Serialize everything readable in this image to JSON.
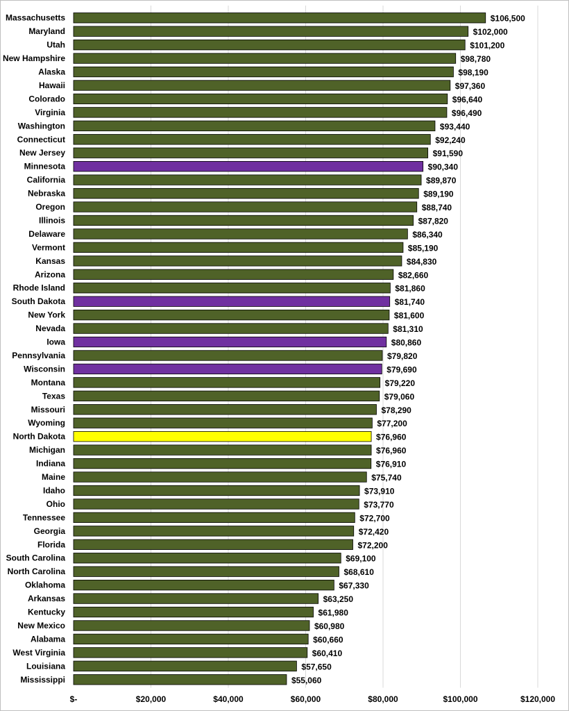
{
  "chart_data": {
    "type": "bar",
    "orientation": "horizontal",
    "categories": [
      "Massachusetts",
      "Maryland",
      "Utah",
      "New Hampshire",
      "Alaska",
      "Hawaii",
      "Colorado",
      "Virginia",
      "Washington",
      "Connecticut",
      "New Jersey",
      "Minnesota",
      "California",
      "Nebraska",
      "Oregon",
      "Illinois",
      "Delaware",
      "Vermont",
      "Kansas",
      "Arizona",
      "Rhode Island",
      "South Dakota",
      "New York",
      "Nevada",
      "Iowa",
      "Pennsylvania",
      "Wisconsin",
      "Montana",
      "Texas",
      "Missouri",
      "Wyoming",
      "North Dakota",
      "Michigan",
      "Indiana",
      "Maine",
      "Idaho",
      "Ohio",
      "Tennessee",
      "Georgia",
      "Florida",
      "South Carolina",
      "North Carolina",
      "Oklahoma",
      "Arkansas",
      "Kentucky",
      "New Mexico",
      "Alabama",
      "West Virginia",
      "Louisiana",
      "Mississippi"
    ],
    "values": [
      106500,
      102000,
      101200,
      98780,
      98190,
      97360,
      96640,
      96490,
      93440,
      92240,
      91590,
      90340,
      89870,
      89190,
      88740,
      87820,
      86340,
      85190,
      84830,
      82660,
      81860,
      81740,
      81600,
      81310,
      80860,
      79820,
      79690,
      79220,
      79060,
      78290,
      77200,
      76960,
      76960,
      76910,
      75740,
      73910,
      73770,
      72700,
      72420,
      72200,
      69100,
      68610,
      67330,
      63250,
      61980,
      60980,
      60660,
      60410,
      57650,
      55060
    ],
    "value_labels": [
      "$106,500",
      "$102,000",
      "$101,200",
      "$98,780",
      "$98,190",
      "$97,360",
      "$96,640",
      "$96,490",
      "$93,440",
      "$92,240",
      "$91,590",
      "$90,340",
      "$89,870",
      "$89,190",
      "$88,740",
      "$87,820",
      "$86,340",
      "$85,190",
      "$84,830",
      "$82,660",
      "$81,860",
      "$81,740",
      "$81,600",
      "$81,310",
      "$80,860",
      "$79,820",
      "$79,690",
      "$79,220",
      "$79,060",
      "$78,290",
      "$77,200",
      "$76,960",
      "$76,960",
      "$76,910",
      "$75,740",
      "$73,910",
      "$73,770",
      "$72,700",
      "$72,420",
      "$72,200",
      "$69,100",
      "$68,610",
      "$67,330",
      "$63,250",
      "$61,980",
      "$60,980",
      "$60,660",
      "$60,410",
      "$57,650",
      "$55,060"
    ],
    "xlim": [
      0,
      120000
    ],
    "x_tick_values": [
      0,
      20000,
      40000,
      60000,
      80000,
      100000,
      120000
    ],
    "x_tick_labels": [
      "$-",
      "$20,000",
      "$40,000",
      "$60,000",
      "$80,000",
      "$100,000",
      "$120,000"
    ],
    "grid": "vertical",
    "title": "",
    "xlabel": "",
    "ylabel": "",
    "colors": {
      "default": "#4f6228",
      "highlight_purple": "#7030a0",
      "highlight_yellow": "#ffff00",
      "bar_outline": "#000000",
      "grid": "#d9d9d9"
    },
    "highlights": {
      "Minnesota": "highlight_purple",
      "South Dakota": "highlight_purple",
      "Iowa": "highlight_purple",
      "Wisconsin": "highlight_purple",
      "North Dakota": "highlight_yellow"
    }
  }
}
